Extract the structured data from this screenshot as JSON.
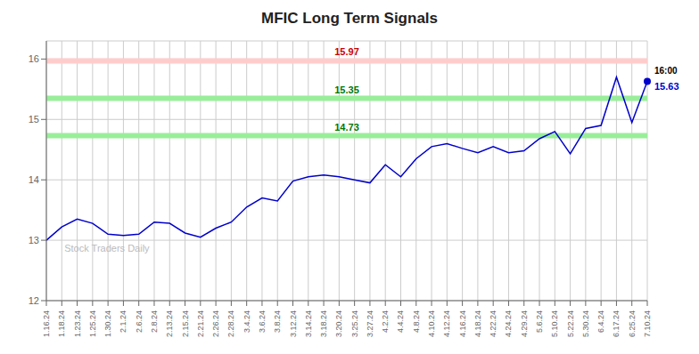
{
  "chart_data": {
    "type": "line",
    "title": "MFIC Long Term Signals",
    "categories": [
      "1.16.24",
      "1.18.24",
      "1.23.24",
      "1.25.24",
      "1.30.24",
      "2.1.24",
      "2.6.24",
      "2.8.24",
      "2.13.24",
      "2.15.24",
      "2.21.24",
      "2.26.24",
      "2.28.24",
      "3.4.24",
      "3.6.24",
      "3.8.24",
      "3.12.24",
      "3.14.24",
      "3.18.24",
      "3.20.24",
      "3.25.24",
      "3.27.24",
      "4.2.24",
      "4.4.24",
      "4.8.24",
      "4.10.24",
      "4.12.24",
      "4.16.24",
      "4.18.24",
      "4.22.24",
      "4.24.24",
      "4.29.24",
      "5.6.24",
      "5.10.24",
      "5.22.24",
      "5.30.24",
      "6.4.24",
      "6.17.24",
      "6.25.24",
      "7.10.24"
    ],
    "values": [
      13.0,
      13.22,
      13.35,
      13.28,
      13.1,
      13.08,
      13.1,
      13.3,
      13.28,
      13.12,
      13.05,
      13.2,
      13.3,
      13.55,
      13.7,
      13.65,
      13.98,
      14.05,
      14.08,
      14.05,
      14.0,
      13.95,
      14.25,
      14.05,
      14.35,
      14.55,
      14.6,
      14.52,
      14.45,
      14.55,
      14.45,
      14.48,
      14.68,
      14.8,
      14.43,
      14.85,
      14.9,
      15.7,
      14.95,
      15.63
    ],
    "color": "#0000cc",
    "ylim": [
      12,
      16.3
    ],
    "yticks": [
      12,
      13,
      14,
      15,
      16
    ],
    "grid": true,
    "reference_lines": [
      {
        "value": 15.97,
        "label": "15.97",
        "color": "#ffcccc",
        "label_color": "#cc0000"
      },
      {
        "value": 15.35,
        "label": "15.35",
        "color": "#99ee99",
        "label_color": "#007700"
      },
      {
        "value": 14.73,
        "label": "14.73",
        "color": "#99ee99",
        "label_color": "#007700"
      }
    ],
    "end_labels": [
      {
        "text": "16:00"
      },
      {
        "text": "15.63",
        "value": 15.63,
        "color": "#0000cc"
      }
    ],
    "watermark": "Stock Traders Daily"
  }
}
